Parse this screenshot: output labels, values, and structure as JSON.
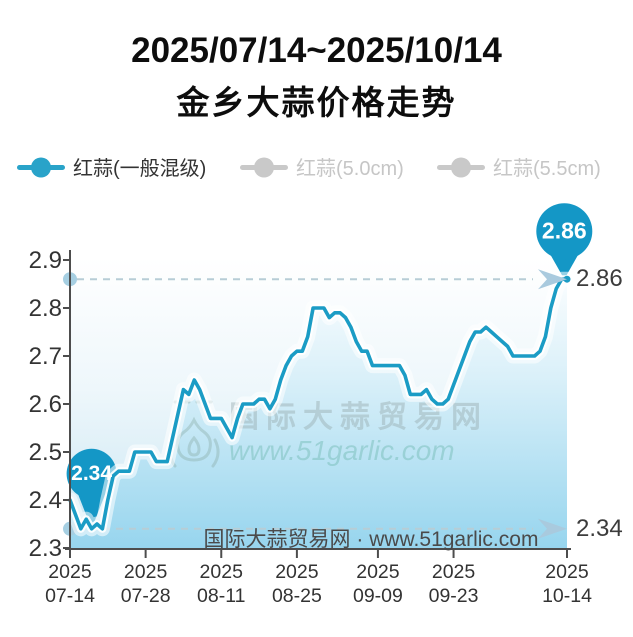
{
  "header": {
    "date_range": "2025/07/14~2025/10/14",
    "title": "金乡大蒜价格走势"
  },
  "legend": {
    "items": [
      {
        "label": "红蒜(一般混级)",
        "active": true
      },
      {
        "label": "红蒜(5.0cm)",
        "active": false
      },
      {
        "label": "红蒜(5.5cm)",
        "active": false
      }
    ]
  },
  "colors": {
    "line": "#1b9cc5",
    "balloon": "#1497c6",
    "legend_active": "#29a3c9",
    "legend_inactive": "#c9c9c9",
    "legend_label_active": "#333333",
    "legend_label_inactive": "#c6c6c6",
    "dashed": "#b7cdd6",
    "dot": "#a6cfe2",
    "arrow": "#a9cade",
    "axis": "#4d4d4d",
    "fill_bottom": "#97d5ee"
  },
  "watermark": {
    "line1": "国际大蒜贸易网",
    "line2": "www.51garlic.com",
    "logo": "garlic-logo"
  },
  "footer": "国际大蒜贸易网 · www.51garlic.com",
  "chart_data": {
    "type": "area",
    "title": "金乡大蒜价格走势",
    "subtitle": "2025/07/14~2025/10/14",
    "series_name": "红蒜(一般混级)",
    "xlabel": "",
    "ylabel": "",
    "ylim": [
      2.3,
      2.9
    ],
    "yticks": [
      2.9,
      2.8,
      2.7,
      2.6,
      2.5,
      2.4,
      2.3
    ],
    "x_days_total": 92,
    "xticks": [
      {
        "day": 0,
        "line1": "2025",
        "line2": "07-14"
      },
      {
        "day": 14,
        "line1": "2025",
        "line2": "07-28"
      },
      {
        "day": 28,
        "line1": "2025",
        "line2": "08-11"
      },
      {
        "day": 42,
        "line1": "2025",
        "line2": "08-25"
      },
      {
        "day": 57,
        "line1": "2025",
        "line2": "09-09"
      },
      {
        "day": 71,
        "line1": "2025",
        "line2": "09-23"
      },
      {
        "day": 92,
        "line1": "2025",
        "line2": "10-14"
      }
    ],
    "points": [
      [
        0,
        2.4
      ],
      [
        1,
        2.37
      ],
      [
        2,
        2.34
      ],
      [
        3,
        2.36
      ],
      [
        4,
        2.34
      ],
      [
        5,
        2.35
      ],
      [
        6,
        2.34
      ],
      [
        7,
        2.4
      ],
      [
        8,
        2.45
      ],
      [
        9,
        2.46
      ],
      [
        10,
        2.46
      ],
      [
        11,
        2.46
      ],
      [
        12,
        2.5
      ],
      [
        13,
        2.5
      ],
      [
        14,
        2.5
      ],
      [
        15,
        2.5
      ],
      [
        16,
        2.48
      ],
      [
        17,
        2.48
      ],
      [
        18,
        2.48
      ],
      [
        19,
        2.53
      ],
      [
        20,
        2.58
      ],
      [
        21,
        2.63
      ],
      [
        22,
        2.62
      ],
      [
        23,
        2.65
      ],
      [
        24,
        2.63
      ],
      [
        25,
        2.6
      ],
      [
        26,
        2.57
      ],
      [
        27,
        2.57
      ],
      [
        28,
        2.57
      ],
      [
        29,
        2.55
      ],
      [
        30,
        2.53
      ],
      [
        31,
        2.57
      ],
      [
        32,
        2.6
      ],
      [
        33,
        2.6
      ],
      [
        34,
        2.6
      ],
      [
        35,
        2.61
      ],
      [
        36,
        2.61
      ],
      [
        37,
        2.59
      ],
      [
        38,
        2.61
      ],
      [
        39,
        2.65
      ],
      [
        40,
        2.68
      ],
      [
        41,
        2.7
      ],
      [
        42,
        2.71
      ],
      [
        43,
        2.71
      ],
      [
        44,
        2.74
      ],
      [
        45,
        2.8
      ],
      [
        46,
        2.8
      ],
      [
        47,
        2.8
      ],
      [
        48,
        2.78
      ],
      [
        49,
        2.79
      ],
      [
        50,
        2.79
      ],
      [
        51,
        2.78
      ],
      [
        52,
        2.76
      ],
      [
        53,
        2.73
      ],
      [
        54,
        2.71
      ],
      [
        55,
        2.71
      ],
      [
        56,
        2.68
      ],
      [
        57,
        2.68
      ],
      [
        58,
        2.68
      ],
      [
        59,
        2.68
      ],
      [
        60,
        2.68
      ],
      [
        61,
        2.68
      ],
      [
        62,
        2.66
      ],
      [
        63,
        2.62
      ],
      [
        64,
        2.62
      ],
      [
        65,
        2.62
      ],
      [
        66,
        2.63
      ],
      [
        67,
        2.61
      ],
      [
        68,
        2.6
      ],
      [
        69,
        2.6
      ],
      [
        70,
        2.61
      ],
      [
        71,
        2.64
      ],
      [
        72,
        2.67
      ],
      [
        73,
        2.7
      ],
      [
        74,
        2.73
      ],
      [
        75,
        2.75
      ],
      [
        76,
        2.75
      ],
      [
        77,
        2.76
      ],
      [
        78,
        2.75
      ],
      [
        79,
        2.74
      ],
      [
        80,
        2.73
      ],
      [
        81,
        2.72
      ],
      [
        82,
        2.7
      ],
      [
        83,
        2.7
      ],
      [
        84,
        2.7
      ],
      [
        85,
        2.7
      ],
      [
        86,
        2.7
      ],
      [
        87,
        2.71
      ],
      [
        88,
        2.74
      ],
      [
        89,
        2.8
      ],
      [
        90,
        2.84
      ],
      [
        91,
        2.86
      ],
      [
        92,
        2.86
      ]
    ],
    "annotations": {
      "max": {
        "label": "2.86",
        "value": 2.86,
        "day": 91.5
      },
      "min": {
        "label": "2.34",
        "value": 2.34,
        "day": 4
      }
    },
    "right_labels": {
      "top": "2.86",
      "bottom": "2.34"
    },
    "legend_position": "top",
    "grid": false
  }
}
